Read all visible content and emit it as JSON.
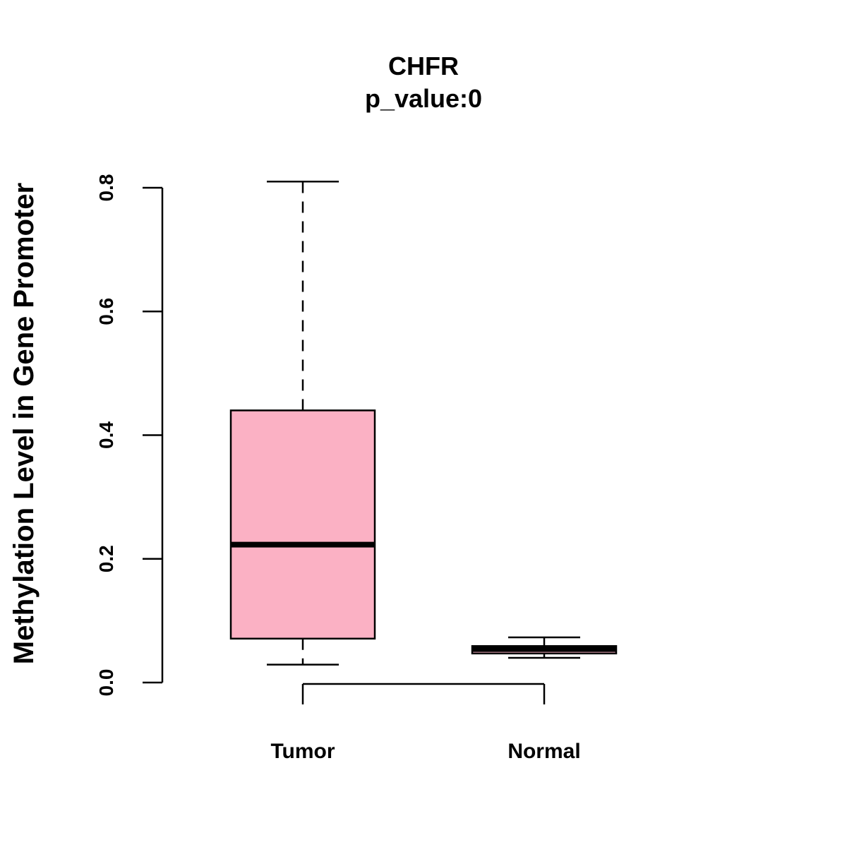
{
  "chart_data": {
    "type": "boxplot",
    "title": "CHFR",
    "subtitle": "p_value:0",
    "xlabel": "",
    "ylabel": "Methylation Level in Gene Promoter",
    "ylim": [
      0,
      0.8
    ],
    "yticks": [
      0.0,
      0.2,
      0.4,
      0.6,
      0.8
    ],
    "ytick_labels": [
      "0.0",
      "0.2",
      "0.4",
      "0.6",
      "0.8"
    ],
    "categories": [
      "Tumor",
      "Normal"
    ],
    "boxes": [
      {
        "category": "Tumor",
        "whisker_low": 0.029,
        "q1": 0.071,
        "median": 0.223,
        "q3": 0.44,
        "whisker_high": 0.81,
        "fill": "#FBB1C4"
      },
      {
        "category": "Normal",
        "whisker_low": 0.04,
        "q1": 0.047,
        "median": 0.054,
        "q3": 0.059,
        "whisker_high": 0.073,
        "fill": "#FBB1C4"
      }
    ],
    "significance_bracket": {
      "between": [
        "Tumor",
        "Normal"
      ]
    },
    "grid": false,
    "legend": "none"
  }
}
